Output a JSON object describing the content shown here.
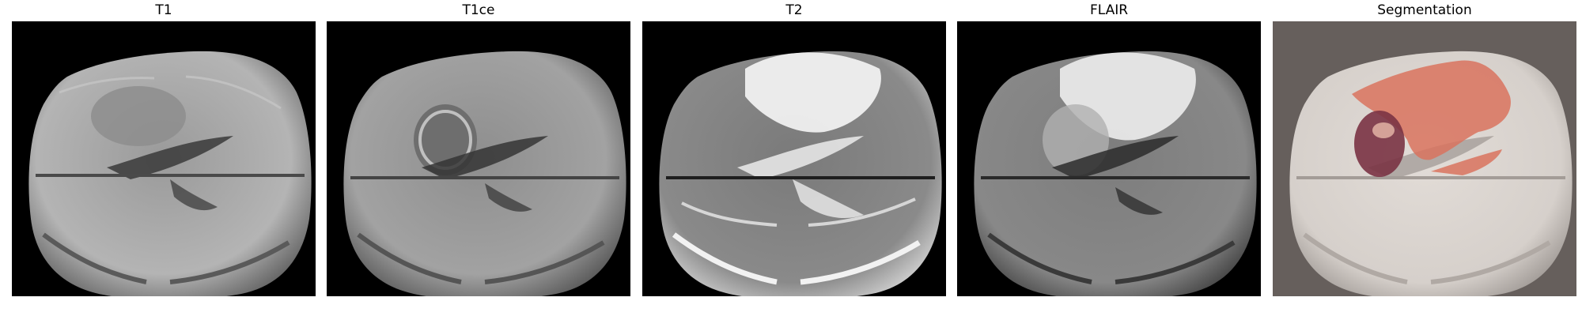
{
  "panels": [
    {
      "title": "T1"
    },
    {
      "title": "T1ce"
    },
    {
      "title": "T2"
    },
    {
      "title": "FLAIR"
    },
    {
      "title": "Segmentation"
    }
  ],
  "colors": {
    "background_black": "#000000",
    "segmentation_background": "#665f5c",
    "edema": "#d9735e",
    "necrotic_core": "#7a3344",
    "enhancing_core": "#d8a89c"
  }
}
